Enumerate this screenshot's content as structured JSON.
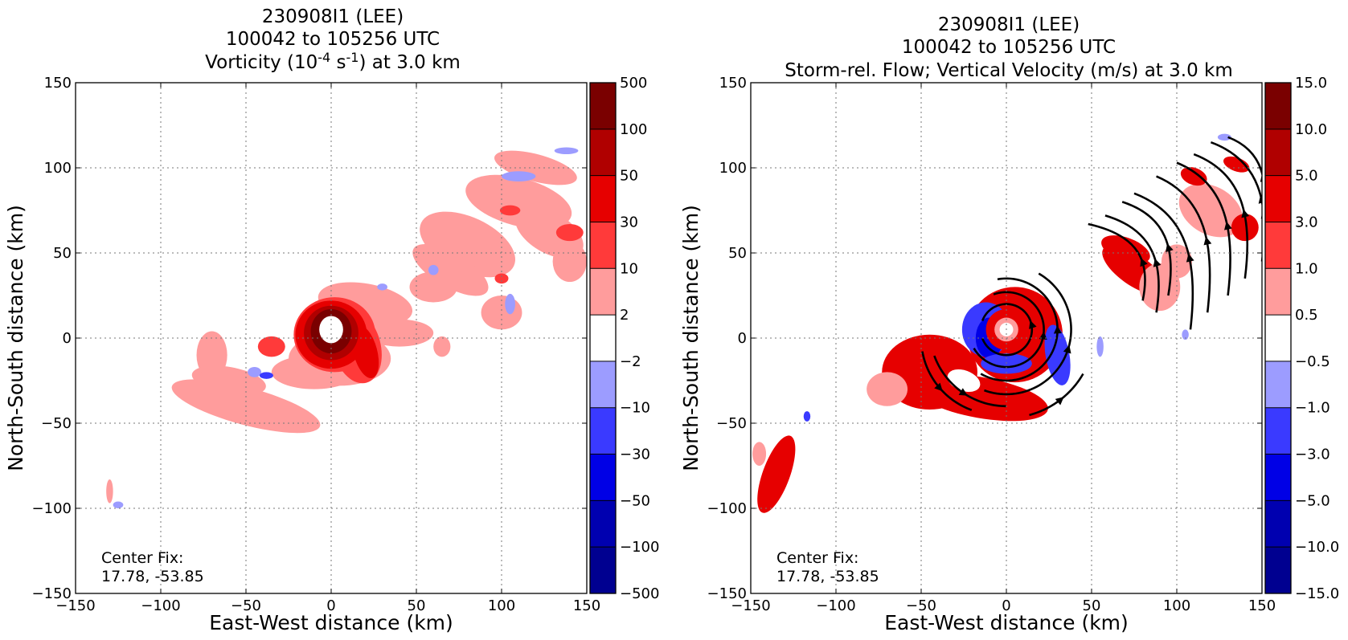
{
  "chart_data": [
    {
      "type": "heatmap",
      "title_lines": [
        "230908I1 (LEE)",
        "100042 to 105256 UTC"
      ],
      "title_line3": {
        "pre": "Vorticity (10",
        "sup1": "-4",
        "mid": " s",
        "sup2": "-1",
        "post": ") at 3.0 km"
      },
      "xlabel": "East-West distance (km)",
      "ylabel": "North-South distance (km)",
      "xlim": [
        -150,
        150
      ],
      "ylim": [
        -150,
        150
      ],
      "xticks": [
        -150,
        -100,
        -50,
        0,
        50,
        100,
        150
      ],
      "yticks": [
        -150,
        -100,
        -50,
        0,
        50,
        100,
        150
      ],
      "xtick_labels": [
        "−150",
        "−100",
        "−50",
        "0",
        "50",
        "100",
        "150"
      ],
      "ytick_labels": [
        "−150",
        "−100",
        "−50",
        "0",
        "50",
        "100",
        "150"
      ],
      "grid": true,
      "annotation": [
        "Center Fix:",
        "17.78, -53.85"
      ],
      "colorbar": {
        "levels": [
          "500",
          "100",
          "50",
          "30",
          "10",
          "2",
          "−2",
          "−10",
          "−30",
          "−50",
          "−100",
          "−500"
        ],
        "colors": [
          "#7a0000",
          "#b00000",
          "#e60000",
          "#ff3a3a",
          "#ff9c9c",
          "#ffffff",
          "#9c9cff",
          "#3a3aff",
          "#0000e6",
          "#0000b0",
          "#000090"
        ]
      },
      "regions": [
        {
          "level": 1,
          "shape": "ellipse",
          "cx": 40,
          "cy": 3,
          "rx": 20,
          "ry": 8,
          "rot": 0
        },
        {
          "level": 1,
          "shape": "ellipse",
          "cx": 60,
          "cy": 30,
          "rx": 14,
          "ry": 9,
          "rot": 0
        },
        {
          "level": 1,
          "shape": "ellipse",
          "cx": 80,
          "cy": 55,
          "rx": 30,
          "ry": 16,
          "rot": -25
        },
        {
          "level": 1,
          "shape": "ellipse",
          "cx": 110,
          "cy": 80,
          "rx": 32,
          "ry": 14,
          "rot": -15
        },
        {
          "level": 1,
          "shape": "ellipse",
          "cx": 128,
          "cy": 62,
          "rx": 22,
          "ry": 12,
          "rot": -30
        },
        {
          "level": 1,
          "shape": "ellipse",
          "cx": 140,
          "cy": 45,
          "rx": 10,
          "ry": 12,
          "rot": 0
        },
        {
          "level": 1,
          "shape": "ellipse",
          "cx": 120,
          "cy": 100,
          "rx": 25,
          "ry": 8,
          "rot": -15
        },
        {
          "level": 1,
          "shape": "ellipse",
          "cx": 70,
          "cy": 40,
          "rx": 25,
          "ry": 10,
          "rot": -30
        },
        {
          "level": 1,
          "shape": "ellipse",
          "cx": 20,
          "cy": 20,
          "rx": 28,
          "ry": 12,
          "rot": -10
        },
        {
          "level": 1,
          "shape": "ellipse",
          "cx": -50,
          "cy": -40,
          "rx": 45,
          "ry": 11,
          "rot": -15
        },
        {
          "level": 1,
          "shape": "ellipse",
          "cx": -60,
          "cy": -25,
          "rx": 22,
          "ry": 8,
          "rot": -10
        },
        {
          "level": 1,
          "shape": "ellipse",
          "cx": -70,
          "cy": -10,
          "rx": 9,
          "ry": 14,
          "rot": 0
        },
        {
          "level": 1,
          "shape": "ellipse",
          "cx": -40,
          "cy": -45,
          "rx": 30,
          "ry": 6,
          "rot": -5
        },
        {
          "level": 1,
          "shape": "ellipse",
          "cx": -10,
          "cy": -20,
          "rx": 25,
          "ry": 10,
          "rot": 0
        },
        {
          "level": 1,
          "shape": "ellipse",
          "cx": 5,
          "cy": -12,
          "rx": 30,
          "ry": 16,
          "rot": 0
        },
        {
          "level": 1,
          "shape": "ellipse",
          "cx": -130,
          "cy": -90,
          "rx": 2,
          "ry": 7,
          "rot": 0
        },
        {
          "level": 1,
          "shape": "ellipse",
          "cx": 100,
          "cy": 15,
          "rx": 12,
          "ry": 10,
          "rot": 0
        },
        {
          "level": 1,
          "shape": "ellipse",
          "cx": 65,
          "cy": -5,
          "rx": 5,
          "ry": 6,
          "rot": 0
        },
        {
          "level": 2,
          "shape": "ellipse",
          "cx": 2,
          "cy": 2,
          "rx": 24,
          "ry": 22,
          "rot": 0
        },
        {
          "level": 2,
          "shape": "ellipse",
          "cx": 15,
          "cy": -5,
          "rx": 14,
          "ry": 22,
          "rot": 15
        },
        {
          "level": 2,
          "shape": "ellipse",
          "cx": -35,
          "cy": -5,
          "rx": 8,
          "ry": 6,
          "rot": 0
        },
        {
          "level": 2,
          "shape": "ellipse",
          "cx": 105,
          "cy": 75,
          "rx": 6,
          "ry": 3,
          "rot": 0
        },
        {
          "level": 2,
          "shape": "ellipse",
          "cx": 140,
          "cy": 62,
          "rx": 8,
          "ry": 5,
          "rot": 0
        },
        {
          "level": 2,
          "shape": "ellipse",
          "cx": 100,
          "cy": 35,
          "rx": 4,
          "ry": 3,
          "rot": 0
        },
        {
          "level": 3,
          "shape": "ellipse",
          "cx": 0,
          "cy": 2,
          "rx": 21,
          "ry": 20,
          "rot": 0
        },
        {
          "level": 3,
          "shape": "ellipse",
          "cx": 20,
          "cy": -8,
          "rx": 7,
          "ry": 16,
          "rot": 15
        },
        {
          "level": 4,
          "shape": "ellipse",
          "cx": 0,
          "cy": 3,
          "rx": 16,
          "ry": 16,
          "rot": 0
        },
        {
          "level": 5,
          "shape": "ellipse",
          "cx": 0,
          "cy": 4,
          "rx": 12,
          "ry": 13,
          "rot": 0
        },
        {
          "level": 0,
          "shape": "ellipse",
          "cx": 0,
          "cy": 5,
          "rx": 7,
          "ry": 8,
          "rot": 0
        },
        {
          "level": -1,
          "shape": "ellipse",
          "cx": 110,
          "cy": 95,
          "rx": 10,
          "ry": 3,
          "rot": 0
        },
        {
          "level": -1,
          "shape": "ellipse",
          "cx": 138,
          "cy": 110,
          "rx": 7,
          "ry": 2,
          "rot": 0
        },
        {
          "level": -1,
          "shape": "ellipse",
          "cx": 105,
          "cy": 20,
          "rx": 3,
          "ry": 6,
          "rot": 0
        },
        {
          "level": -1,
          "shape": "ellipse",
          "cx": 60,
          "cy": 40,
          "rx": 3,
          "ry": 3,
          "rot": 0
        },
        {
          "level": -1,
          "shape": "ellipse",
          "cx": 30,
          "cy": 30,
          "rx": 3,
          "ry": 2,
          "rot": 0
        },
        {
          "level": -1,
          "shape": "ellipse",
          "cx": -125,
          "cy": -98,
          "rx": 3,
          "ry": 2,
          "rot": 0
        },
        {
          "level": -1,
          "shape": "ellipse",
          "cx": -45,
          "cy": -20,
          "rx": 4,
          "ry": 3,
          "rot": 0
        },
        {
          "level": -2,
          "shape": "ellipse",
          "cx": -38,
          "cy": -22,
          "rx": 4,
          "ry": 2,
          "rot": 0
        }
      ]
    },
    {
      "type": "heatmap",
      "title_lines": [
        "230908I1 (LEE)",
        "100042 to 105256 UTC",
        "Storm-rel. Flow; Vertical Velocity (m/s) at 3.0 km"
      ],
      "xlabel": "East-West distance (km)",
      "ylabel": "North-South distance (km)",
      "xlim": [
        -150,
        150
      ],
      "ylim": [
        -150,
        150
      ],
      "xticks": [
        -150,
        -100,
        -50,
        0,
        50,
        100,
        150
      ],
      "yticks": [
        -150,
        -100,
        -50,
        0,
        50,
        100,
        150
      ],
      "xtick_labels": [
        "−150",
        "−100",
        "−50",
        "0",
        "50",
        "100",
        "150"
      ],
      "ytick_labels": [
        "−150",
        "−100",
        "−50",
        "0",
        "50",
        "100",
        "150"
      ],
      "grid": true,
      "annotation": [
        "Center Fix:",
        "17.78, -53.85"
      ],
      "colorbar": {
        "levels": [
          "15.0",
          "10.0",
          "5.0",
          "3.0",
          "1.0",
          "0.5",
          "−0.5",
          "−1.0",
          "−3.0",
          "−5.0",
          "−10.0",
          "−15.0"
        ],
        "colors": [
          "#7a0000",
          "#b00000",
          "#e60000",
          "#ff3a3a",
          "#ff9c9c",
          "#ffffff",
          "#9c9cff",
          "#3a3aff",
          "#0000e6",
          "#0000b0",
          "#000090"
        ]
      },
      "regions": [
        {
          "level": 3,
          "shape": "ellipse",
          "cx": -45,
          "cy": -20,
          "rx": 28,
          "ry": 22,
          "rot": 0
        },
        {
          "level": 3,
          "shape": "ellipse",
          "cx": -15,
          "cy": -35,
          "rx": 40,
          "ry": 12,
          "rot": -10
        },
        {
          "level": 3,
          "shape": "ellipse",
          "cx": 5,
          "cy": 2,
          "rx": 28,
          "ry": 28,
          "rot": 0
        },
        {
          "level": 1,
          "shape": "ellipse",
          "cx": -70,
          "cy": -30,
          "rx": 12,
          "ry": 10,
          "rot": 0
        },
        {
          "level": 0,
          "shape": "ellipse",
          "cx": -25,
          "cy": -25,
          "rx": 10,
          "ry": 6,
          "rot": -20
        },
        {
          "level": -2,
          "shape": "ellipse",
          "cx": -12,
          "cy": 5,
          "rx": 14,
          "ry": 16,
          "rot": 0
        },
        {
          "level": -3,
          "shape": "ellipse",
          "cx": -10,
          "cy": 0,
          "rx": 8,
          "ry": 12,
          "rot": 0
        },
        {
          "level": -2,
          "shape": "ellipse",
          "cx": 30,
          "cy": -10,
          "rx": 7,
          "ry": 18,
          "rot": 10
        },
        {
          "level": -2,
          "shape": "ellipse",
          "cx": 0,
          "cy": -15,
          "rx": 15,
          "ry": 6,
          "rot": 0
        },
        {
          "level": 3,
          "shape": "ellipse",
          "cx": 0,
          "cy": 5,
          "rx": 12,
          "ry": 12,
          "rot": 0
        },
        {
          "level": 1,
          "shape": "ellipse",
          "cx": 0,
          "cy": 5,
          "rx": 7,
          "ry": 7,
          "rot": 0
        },
        {
          "level": 0,
          "shape": "ellipse",
          "cx": 0,
          "cy": 5,
          "rx": 4,
          "ry": 4,
          "rot": 0
        },
        {
          "level": -1,
          "shape": "ellipse",
          "cx": 55,
          "cy": -5,
          "rx": 2,
          "ry": 6,
          "rot": 0
        },
        {
          "level": 3,
          "shape": "ellipse",
          "cx": 75,
          "cy": 40,
          "rx": 22,
          "ry": 9,
          "rot": -35
        },
        {
          "level": 3,
          "shape": "ellipse",
          "cx": 70,
          "cy": 52,
          "rx": 15,
          "ry": 7,
          "rot": -20
        },
        {
          "level": 1,
          "shape": "ellipse",
          "cx": 90,
          "cy": 30,
          "rx": 12,
          "ry": 14,
          "rot": 0
        },
        {
          "level": 1,
          "shape": "ellipse",
          "cx": 120,
          "cy": 75,
          "rx": 20,
          "ry": 14,
          "rot": -30
        },
        {
          "level": 3,
          "shape": "ellipse",
          "cx": 110,
          "cy": 95,
          "rx": 8,
          "ry": 5,
          "rot": -20
        },
        {
          "level": 3,
          "shape": "ellipse",
          "cx": 140,
          "cy": 65,
          "rx": 8,
          "ry": 8,
          "rot": 0
        },
        {
          "level": 3,
          "shape": "ellipse",
          "cx": 135,
          "cy": 102,
          "rx": 8,
          "ry": 4,
          "rot": -20
        },
        {
          "level": 1,
          "shape": "ellipse",
          "cx": 100,
          "cy": 45,
          "rx": 9,
          "ry": 10,
          "rot": 0
        },
        {
          "level": -1,
          "shape": "ellipse",
          "cx": 128,
          "cy": 118,
          "rx": 4,
          "ry": 2,
          "rot": 0
        },
        {
          "level": -1,
          "shape": "ellipse",
          "cx": 105,
          "cy": 2,
          "rx": 2,
          "ry": 3,
          "rot": 0
        },
        {
          "level": -2,
          "shape": "ellipse",
          "cx": -117,
          "cy": -46,
          "rx": 2,
          "ry": 3,
          "rot": 0
        },
        {
          "level": 3,
          "shape": "ellipse",
          "cx": -135,
          "cy": -80,
          "rx": 8,
          "ry": 24,
          "rot": -20
        },
        {
          "level": 1,
          "shape": "ellipse",
          "cx": -145,
          "cy": -68,
          "rx": 4,
          "ry": 7,
          "rot": 0
        }
      ],
      "streamlines": [
        {
          "cx": 0,
          "cy": 5,
          "r": 15,
          "a0": 200,
          "a1": 520
        },
        {
          "cx": 0,
          "cy": 5,
          "r": 22,
          "a0": 210,
          "a1": 470
        },
        {
          "cx": 0,
          "cy": 5,
          "r": 30,
          "a0": 240,
          "a1": 460
        },
        {
          "cx": 0,
          "cy": 5,
          "r": 38,
          "a0": 250,
          "a1": 420
        },
        {
          "cx": 0,
          "cy": 5,
          "r": 45,
          "a0": 200,
          "a1": 270
        },
        {
          "cx": 0,
          "cy": 5,
          "r": 52,
          "a0": 285,
          "a1": 330
        },
        {
          "cx": -5,
          "cy": 0,
          "r": 45,
          "a0": 190,
          "a1": 250
        }
      ],
      "streamline_arcs": [
        {
          "x0": 48,
          "y0": 67,
          "x1": 80,
          "y1": 22
        },
        {
          "x0": 58,
          "y0": 72,
          "x1": 88,
          "y1": 15
        },
        {
          "x0": 68,
          "y0": 80,
          "x1": 95,
          "y1": 25
        },
        {
          "x0": 75,
          "y0": 85,
          "x1": 108,
          "y1": 5
        },
        {
          "x0": 88,
          "y0": 95,
          "x1": 118,
          "y1": 15
        },
        {
          "x0": 100,
          "y0": 103,
          "x1": 130,
          "y1": 25
        },
        {
          "x0": 110,
          "y0": 108,
          "x1": 140,
          "y1": 35
        },
        {
          "x0": 120,
          "y0": 115,
          "x1": 150,
          "y1": 45
        },
        {
          "x0": 130,
          "y0": 118,
          "x1": 150,
          "y1": 70
        }
      ]
    }
  ]
}
